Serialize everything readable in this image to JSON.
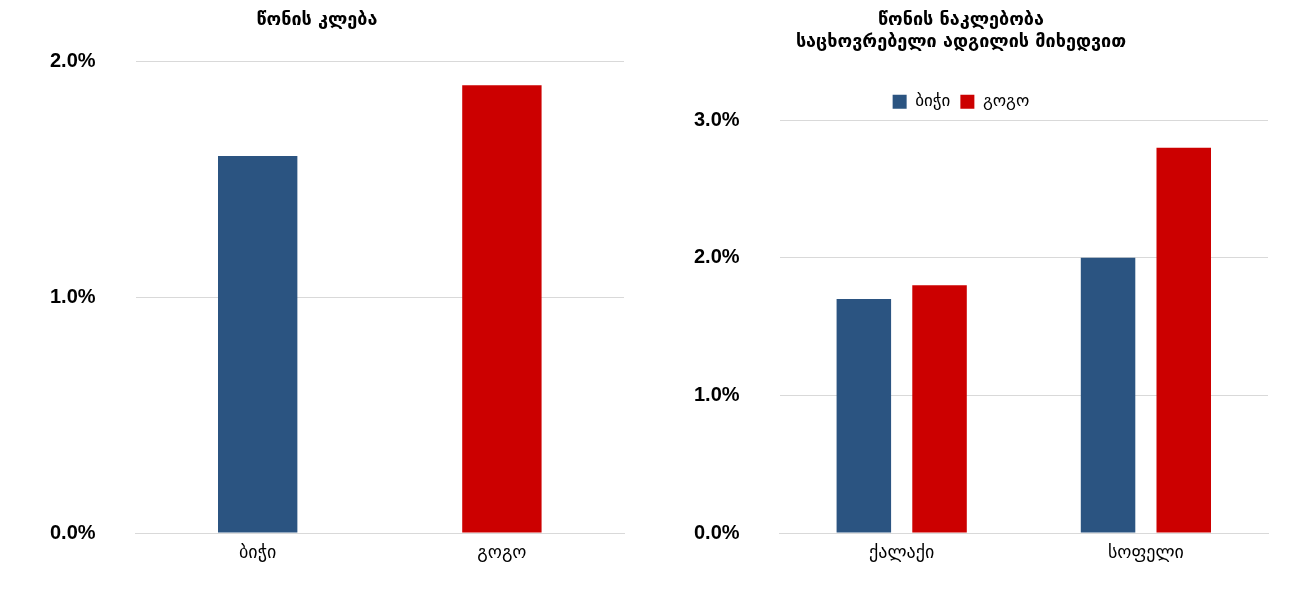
{
  "chart_data": [
    {
      "type": "bar",
      "title": "წონის კლება",
      "categories": [
        "ბიჭი",
        "გოგო"
      ],
      "colors": [
        "#2b5481",
        "#cc0000"
      ],
      "values": [
        1.6,
        1.9
      ],
      "ylim": [
        0,
        2
      ],
      "yticks": [
        {
          "value": 0,
          "label": "0.0%"
        },
        {
          "value": 1,
          "label": "1.0%"
        },
        {
          "value": 2,
          "label": "2.0%"
        }
      ],
      "grid": "y"
    },
    {
      "type": "bar",
      "title": "წონის ნაკლებობა\nსაცხოვრებელი ადგილის მიხედვით",
      "categories": [
        "ქალაქი",
        "სოფელი"
      ],
      "series": [
        {
          "name": "ბიჭი",
          "color": "#2b5481",
          "values": [
            1.7,
            2.0
          ]
        },
        {
          "name": "გოგო",
          "color": "#cc0000",
          "values": [
            1.8,
            2.8
          ]
        }
      ],
      "ylim": [
        0,
        3
      ],
      "yticks": [
        {
          "value": 0,
          "label": "0.0%"
        },
        {
          "value": 1,
          "label": "1.0%"
        },
        {
          "value": 2,
          "label": "2.0%"
        },
        {
          "value": 3,
          "label": "3.0%"
        }
      ],
      "grid": "y",
      "legend": "top"
    }
  ]
}
